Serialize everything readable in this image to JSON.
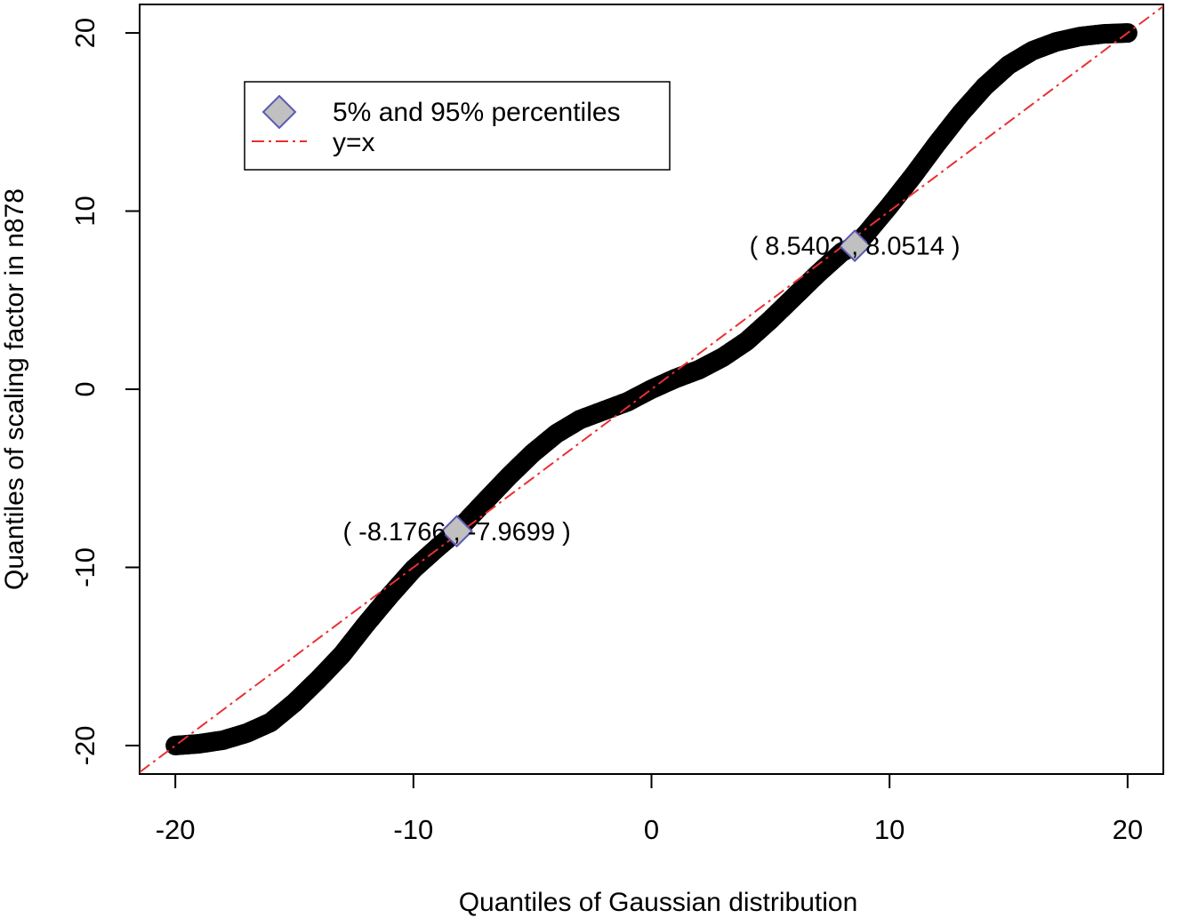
{
  "chart_data": {
    "type": "scatter",
    "xlabel": "Quantiles of Gaussian distribution",
    "ylabel": "Quantiles of scaling factor in n878",
    "xlim": [
      -21.5,
      21.5
    ],
    "ylim": [
      -21.6,
      21.6
    ],
    "xticks": [
      -20,
      -10,
      0,
      10,
      20
    ],
    "yticks": [
      -20,
      -10,
      0,
      10,
      20
    ],
    "grid": false,
    "legend_placement": "top-left",
    "series": [
      {
        "name": "",
        "color": "#000000",
        "marker": "filled-circle",
        "x": [
          -20,
          -19,
          -18,
          -17,
          -16,
          -15,
          -14,
          -13,
          -12,
          -11,
          -10,
          -9,
          -8.1766,
          -7,
          -6,
          -5,
          -4,
          -3,
          -2,
          -1,
          0,
          1,
          2,
          3,
          4,
          5,
          6,
          7,
          8,
          8.5402,
          9,
          10,
          11,
          12,
          13,
          14,
          15,
          16,
          17,
          18,
          19,
          20
        ],
        "y": [
          -20,
          -19.9,
          -19.7,
          -19.3,
          -18.7,
          -17.6,
          -16.3,
          -14.9,
          -13.2,
          -11.6,
          -10.1,
          -8.9,
          -7.9699,
          -6.3,
          -4.9,
          -3.6,
          -2.5,
          -1.7,
          -1.2,
          -0.7,
          0,
          0.6,
          1.1,
          1.8,
          2.7,
          3.9,
          5.2,
          6.5,
          7.7,
          8.0514,
          8.7,
          10.3,
          12.0,
          13.8,
          15.5,
          17.0,
          18.2,
          19.0,
          19.5,
          19.8,
          19.95,
          20
        ]
      },
      {
        "name": "y=x",
        "color": "#e8312f",
        "line_style": "dash-dot",
        "x": [
          -21.5,
          21.5
        ],
        "y": [
          -21.5,
          21.5
        ]
      },
      {
        "name": "5% and 95% percentiles",
        "color": "#c0c0c0",
        "edge_color": "#5a5ab4",
        "marker": "diamond",
        "x": [
          -8.1766,
          8.5402
        ],
        "y": [
          -7.9699,
          8.0514
        ]
      }
    ],
    "annotations": [
      {
        "text": "( -8.1766 , -7.9699 )",
        "x": -8.1766,
        "y": -7.9699
      },
      {
        "text": "( 8.5402 , 8.0514 )",
        "x": 8.5402,
        "y": 8.0514
      }
    ],
    "legend": [
      {
        "label": "5% and 95% percentiles",
        "symbol": "diamond"
      },
      {
        "label": "y=x",
        "symbol": "dash-dot-line"
      }
    ]
  }
}
